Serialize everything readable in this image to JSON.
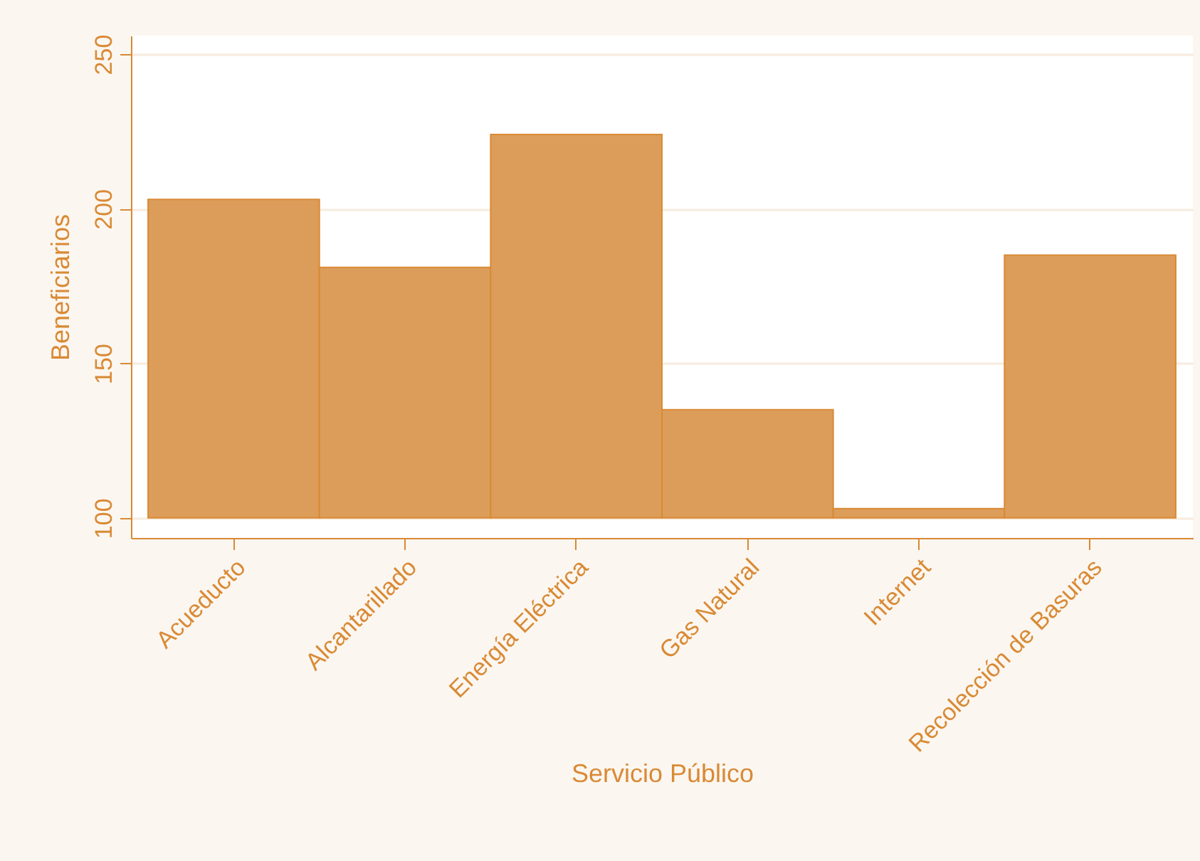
{
  "chart_data": {
    "type": "bar",
    "xlabel": "Servicio Público",
    "ylabel": "Beneficiarios",
    "categories": [
      "Acueducto",
      "Alcantarillado",
      "Energía Eléctrica",
      "Gas Natural",
      "Internet",
      "Recolección de Basuras"
    ],
    "base": [
      100,
      100,
      100,
      100,
      100,
      100
    ],
    "values": [
      103,
      81,
      124,
      35,
      3,
      85
    ],
    "color": "#dc9d5b",
    "ylim": [
      93.5,
      256
    ],
    "yticks": [
      100,
      150,
      200,
      250
    ],
    "grid": "y"
  }
}
